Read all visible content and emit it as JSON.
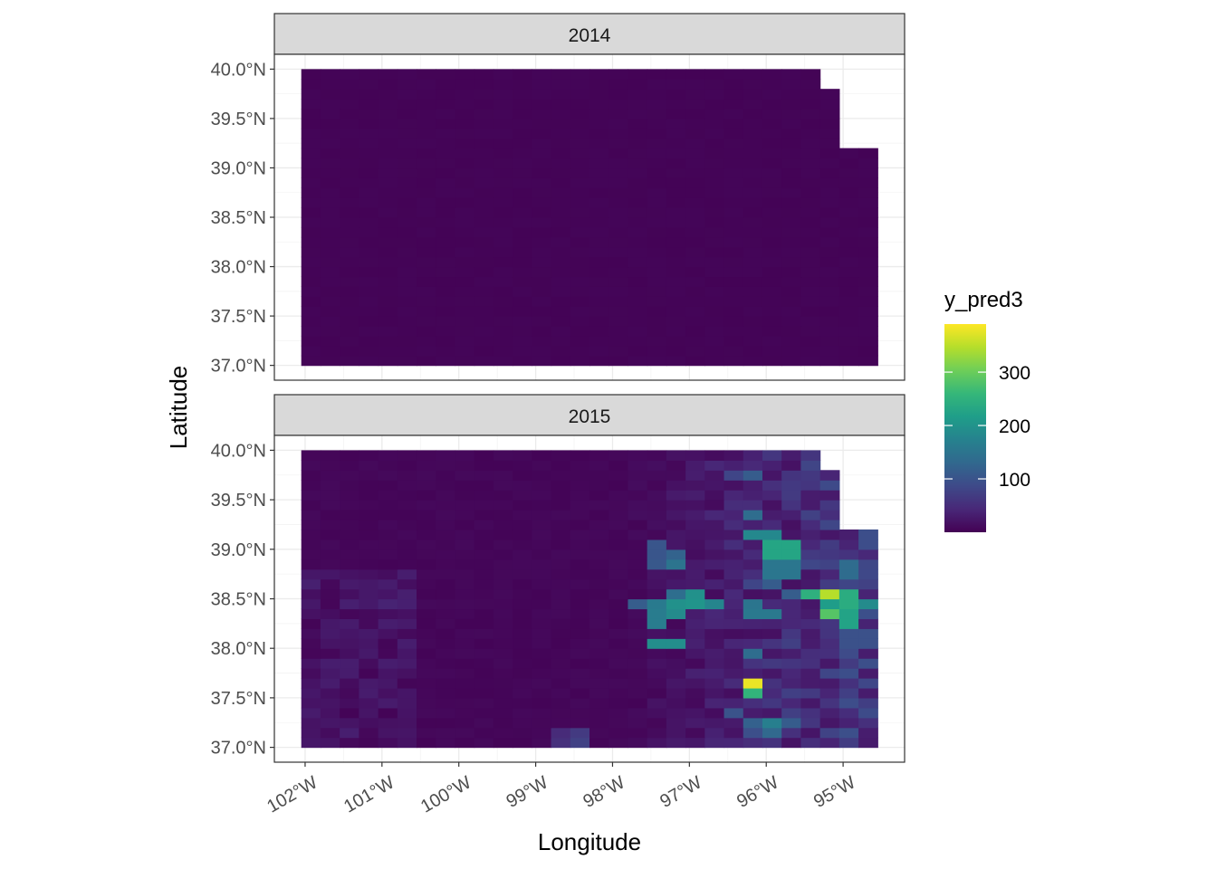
{
  "chart_data": {
    "type": "heatmap",
    "subtype": "faceted raster map",
    "xlabel": "Longitude",
    "ylabel": "Latitude",
    "x_ticks": [
      -102,
      -101,
      -100,
      -99,
      -98,
      -97,
      -96,
      -95
    ],
    "x_tick_labels": [
      "102°W",
      "101°W",
      "100°W",
      "99°W",
      "98°W",
      "97°W",
      "96°W",
      "95°W"
    ],
    "y_ticks": [
      37.0,
      37.5,
      38.0,
      38.5,
      39.0,
      39.5,
      40.0
    ],
    "y_tick_labels": [
      "37.0°N",
      "37.5°N",
      "38.0°N",
      "38.5°N",
      "39.0°N",
      "39.5°N",
      "40.0°N"
    ],
    "xlim": [
      -102.4,
      -94.2
    ],
    "ylim": [
      36.85,
      40.15
    ],
    "grid": true,
    "color_scale": {
      "name": "viridis",
      "title": "y_pred3",
      "range": [
        0,
        390
      ],
      "ticks": [
        100,
        200,
        300
      ],
      "tick_labels": [
        "100",
        "200",
        "300"
      ],
      "position": "right",
      "stops": [
        "#440154",
        "#482878",
        "#3e4a89",
        "#31688e",
        "#26828e",
        "#1f9e89",
        "#35b779",
        "#6ece58",
        "#b5de2b",
        "#fde725"
      ]
    },
    "facets": [
      {
        "label": "2014",
        "base_value": 2,
        "hotspots": []
      },
      {
        "label": "2015",
        "base_value": 5,
        "hotspots": [
          {
            "lon": -96.82,
            "lat": 38.45,
            "value": 230
          },
          {
            "lon": -97.25,
            "lat": 38.35,
            "value": 200
          },
          {
            "lon": -97.25,
            "lat": 38.45,
            "value": 210
          },
          {
            "lon": -97.45,
            "lat": 38.3,
            "value": 190
          },
          {
            "lon": -97.5,
            "lat": 38.45,
            "value": 170
          },
          {
            "lon": -97.3,
            "lat": 38.05,
            "value": 230
          },
          {
            "lon": -97.0,
            "lat": 38.55,
            "value": 210
          },
          {
            "lon": -97.25,
            "lat": 38.85,
            "value": 160
          },
          {
            "lon": -97.25,
            "lat": 38.95,
            "value": 130
          },
          {
            "lon": -97.45,
            "lat": 39.0,
            "value": 120
          },
          {
            "lon": -96.05,
            "lat": 39.15,
            "value": 220
          },
          {
            "lon": -95.8,
            "lat": 39.0,
            "value": 330
          },
          {
            "lon": -95.8,
            "lat": 38.8,
            "value": 220
          },
          {
            "lon": -96.2,
            "lat": 39.35,
            "value": 140
          },
          {
            "lon": -96.25,
            "lat": 39.75,
            "value": 120
          },
          {
            "lon": -96.0,
            "lat": 38.65,
            "value": 120
          },
          {
            "lon": -96.25,
            "lat": 38.4,
            "value": 190
          },
          {
            "lon": -96.05,
            "lat": 38.35,
            "value": 190
          },
          {
            "lon": -95.25,
            "lat": 38.55,
            "value": 370
          },
          {
            "lon": -95.25,
            "lat": 38.38,
            "value": 320
          },
          {
            "lon": -95.0,
            "lat": 38.5,
            "value": 300
          },
          {
            "lon": -95.0,
            "lat": 38.3,
            "value": 280
          },
          {
            "lon": -94.75,
            "lat": 38.45,
            "value": 200
          },
          {
            "lon": -95.5,
            "lat": 38.55,
            "value": 170
          },
          {
            "lon": -95.0,
            "lat": 38.8,
            "value": 170
          },
          {
            "lon": -94.8,
            "lat": 38.1,
            "value": 140
          },
          {
            "lon": -95.0,
            "lat": 38.0,
            "value": 110
          },
          {
            "lon": -94.75,
            "lat": 37.85,
            "value": 100
          },
          {
            "lon": -96.22,
            "lat": 37.66,
            "value": 390
          },
          {
            "lon": -96.22,
            "lat": 37.55,
            "value": 260
          },
          {
            "lon": -96.0,
            "lat": 37.25,
            "value": 180
          },
          {
            "lon": -96.0,
            "lat": 37.15,
            "value": 140
          },
          {
            "lon": -96.2,
            "lat": 37.95,
            "value": 140
          },
          {
            "lon": -95.75,
            "lat": 37.25,
            "value": 120
          },
          {
            "lon": -96.4,
            "lat": 37.35,
            "value": 100
          },
          {
            "lon": -98.5,
            "lat": 37.15,
            "value": 70
          },
          {
            "lon": -98.5,
            "lat": 37.05,
            "value": 80
          },
          {
            "lon": -101.0,
            "lat": 38.45,
            "value": 40
          },
          {
            "lon": -101.2,
            "lat": 38.6,
            "value": 30
          }
        ]
      }
    ]
  }
}
